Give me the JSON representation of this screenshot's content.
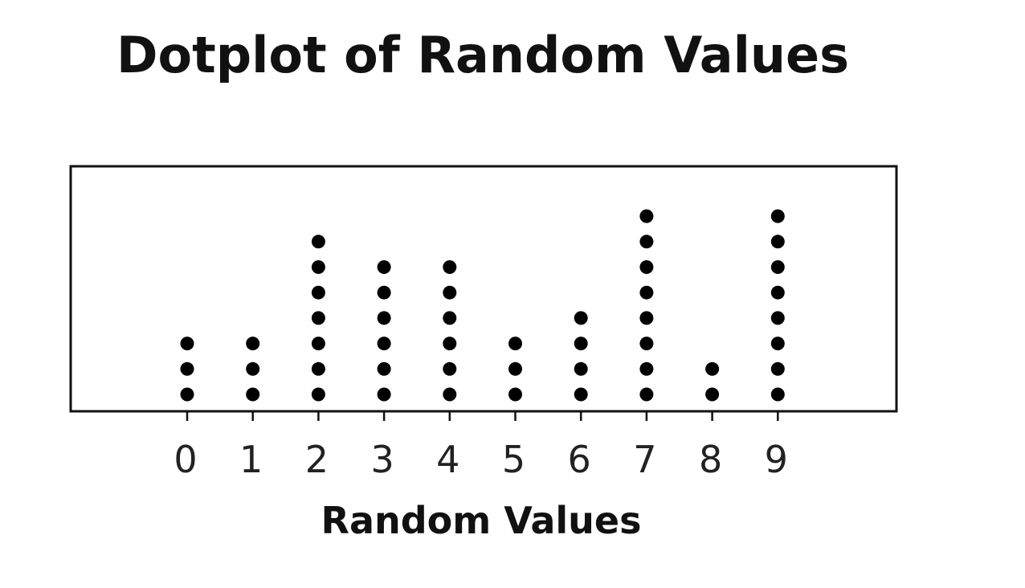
{
  "chart_data": {
    "type": "dotplot",
    "title": "Dotplot of Random Values",
    "xlabel": "Random Values",
    "ylabel": "",
    "categories": [
      "0",
      "1",
      "2",
      "3",
      "4",
      "5",
      "6",
      "7",
      "8",
      "9"
    ],
    "values": [
      3,
      3,
      7,
      6,
      6,
      3,
      4,
      8,
      2,
      8
    ],
    "xlim": [
      0,
      9
    ],
    "grid": false,
    "legend": "none",
    "colors": {
      "dot": "#000000",
      "frame": "#111111",
      "text": "#111111"
    }
  }
}
